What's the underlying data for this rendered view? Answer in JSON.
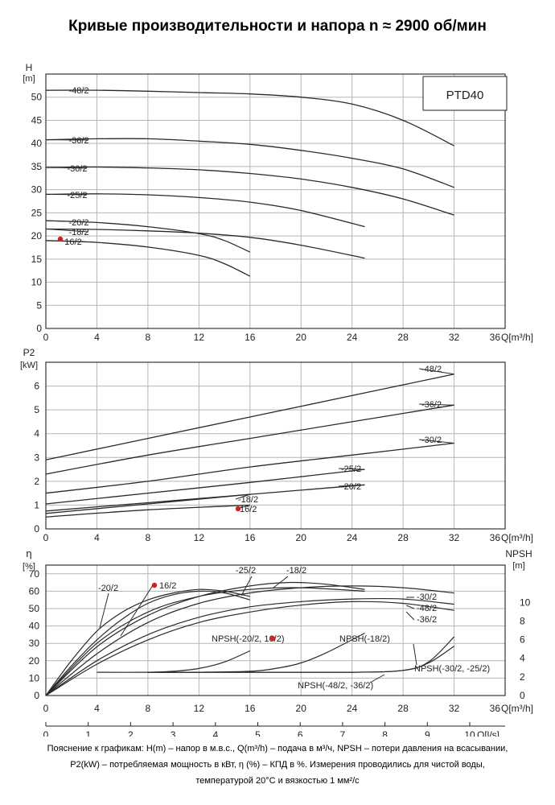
{
  "page": {
    "title": "Кривые производительности и напора n ≈ 2900 об/мин",
    "footnote": [
      "Пояснение к графикам: H(m) – напор в м.в.с., Q(m³/h) – подача в м³/ч, NPSH – потери давления на всасывании,",
      "P2(kW) – потребляемая мощность в кВт, η (%) – КПД в %. Измерения проводились для чистой воды,",
      "температурой 20°C и вязкостью 1 мм²/с"
    ]
  },
  "chart_data": [
    {
      "type": "line",
      "model_label": "PTD40",
      "ylabel_top": "H",
      "ylabel_unit": "[m]",
      "xlabel": "Q[m³/h]",
      "xlim": [
        0,
        36
      ],
      "ylim": [
        0,
        55
      ],
      "xticks": [
        0,
        4,
        8,
        12,
        16,
        20,
        24,
        28,
        32,
        36
      ],
      "yticks": [
        0,
        5,
        10,
        15,
        20,
        25,
        30,
        35,
        40,
        45,
        50
      ],
      "grid": true,
      "series": [
        {
          "name": "-48/2",
          "x": [
            0,
            4,
            8,
            12,
            16,
            20,
            24,
            28,
            32
          ],
          "y": [
            51.5,
            51.5,
            51.3,
            51.0,
            50.7,
            50.0,
            48.5,
            45.0,
            39.5
          ]
        },
        {
          "name": "-36/2",
          "x": [
            0,
            4,
            8,
            12,
            16,
            20,
            24,
            28,
            32
          ],
          "y": [
            40.8,
            41.0,
            41.0,
            40.5,
            39.8,
            38.5,
            36.8,
            34.5,
            30.5
          ]
        },
        {
          "name": "-30/2",
          "x": [
            0,
            4,
            8,
            12,
            16,
            20,
            24,
            28,
            32
          ],
          "y": [
            34.8,
            34.9,
            34.7,
            34.3,
            33.5,
            32.3,
            30.5,
            28.0,
            24.5
          ]
        },
        {
          "name": "-25/2",
          "x": [
            0,
            4,
            8,
            12,
            16,
            20,
            25
          ],
          "y": [
            29.0,
            29.1,
            28.9,
            28.3,
            27.3,
            25.5,
            22.0
          ]
        },
        {
          "name": "-20/2",
          "x": [
            0,
            4,
            8,
            12,
            14,
            16
          ],
          "y": [
            23.3,
            22.9,
            22.0,
            20.5,
            19.0,
            16.5
          ]
        },
        {
          "name": "-18/2",
          "x": [
            0,
            4,
            8,
            12,
            16,
            20,
            25
          ],
          "y": [
            21.5,
            21.4,
            21.1,
            20.6,
            19.7,
            18.0,
            15.2
          ]
        },
        {
          "name": "16/2",
          "x": [
            0,
            4,
            8,
            12,
            14,
            16
          ],
          "y": [
            19.0,
            18.6,
            17.6,
            15.8,
            14.0,
            11.3
          ]
        }
      ]
    },
    {
      "type": "line",
      "ylabel_top": "P2",
      "ylabel_unit": "[kW]",
      "xlabel": "Q[m³/h]",
      "xlim": [
        0,
        36
      ],
      "ylim": [
        0,
        7
      ],
      "xticks": [
        0,
        4,
        8,
        12,
        16,
        20,
        24,
        28,
        32,
        36
      ],
      "yticks": [
        0,
        1,
        2,
        3,
        4,
        5,
        6
      ],
      "grid": true,
      "series": [
        {
          "name": "-48/2",
          "x": [
            0,
            8,
            16,
            24,
            32
          ],
          "y": [
            2.9,
            3.8,
            4.7,
            5.6,
            6.5
          ]
        },
        {
          "name": "-36/2",
          "x": [
            0,
            8,
            16,
            24,
            32
          ],
          "y": [
            2.3,
            3.1,
            3.8,
            4.5,
            5.2
          ]
        },
        {
          "name": "-30/2",
          "x": [
            0,
            8,
            16,
            24,
            32
          ],
          "y": [
            1.5,
            2.0,
            2.6,
            3.1,
            3.6
          ]
        },
        {
          "name": "-25/2",
          "x": [
            0,
            8,
            16,
            25
          ],
          "y": [
            1.05,
            1.5,
            1.95,
            2.5
          ]
        },
        {
          "name": "-20/2",
          "x": [
            0,
            8,
            16,
            25
          ],
          "y": [
            0.75,
            1.1,
            1.45,
            1.85
          ]
        },
        {
          "name": "-18/2",
          "x": [
            0,
            8,
            16
          ],
          "y": [
            0.65,
            1.05,
            1.45
          ]
        },
        {
          "name": "16/2",
          "x": [
            0,
            8,
            16
          ],
          "y": [
            0.5,
            0.8,
            1.0
          ]
        }
      ]
    },
    {
      "type": "line",
      "ylabel_left_top": "η",
      "ylabel_left_unit": "[%]",
      "ylabel_right_top": "NPSH",
      "ylabel_right_unit": "[m]",
      "xlabel": "Q[m³/h]",
      "xlabel_secondary": "Q[l/s]",
      "xlim": [
        0,
        36
      ],
      "ylim": [
        0,
        75
      ],
      "ylim_right": [
        0,
        14
      ],
      "xticks": [
        0,
        4,
        8,
        12,
        16,
        20,
        24,
        28,
        32,
        36
      ],
      "yticks": [
        0,
        10,
        20,
        30,
        40,
        50,
        60,
        70
      ],
      "yticks_right": [
        0,
        2,
        4,
        6,
        8,
        10
      ],
      "xticks_secondary": [
        0,
        1,
        2,
        3,
        4,
        5,
        6,
        7,
        8,
        9,
        10
      ],
      "grid": true,
      "efficiency_series": [
        {
          "name": "-20/2",
          "x": [
            0,
            2,
            4,
            6,
            8,
            10,
            12,
            14,
            16
          ],
          "y": [
            0,
            20,
            37,
            48,
            55,
            59,
            61,
            60,
            57
          ]
        },
        {
          "name": "16/2",
          "x": [
            0,
            2,
            4,
            6,
            8,
            10,
            12,
            14,
            16
          ],
          "y": [
            0,
            17,
            32,
            44,
            53,
            58,
            60,
            59,
            55
          ]
        },
        {
          "name": "-25/2",
          "x": [
            0,
            4,
            8,
            12,
            16,
            20,
            25
          ],
          "y": [
            0,
            30,
            48,
            57,
            61,
            62,
            60
          ]
        },
        {
          "name": "-18/2",
          "x": [
            0,
            4,
            8,
            12,
            16,
            19,
            22,
            25
          ],
          "y": [
            0,
            28,
            46,
            57,
            63,
            65,
            64,
            61
          ]
        },
        {
          "name": "-30/2",
          "x": [
            0,
            4,
            8,
            12,
            16,
            20,
            24,
            28,
            32
          ],
          "y": [
            0,
            24,
            42,
            53,
            59,
            62,
            63,
            62,
            59
          ]
        },
        {
          "name": "-48/2",
          "x": [
            0,
            4,
            8,
            12,
            16,
            20,
            24,
            28,
            32
          ],
          "y": [
            0,
            20,
            35,
            45,
            51,
            54,
            55.5,
            55.5,
            52.5
          ]
        },
        {
          "name": "-36/2",
          "x": [
            0,
            4,
            8,
            12,
            16,
            20,
            24,
            28,
            32
          ],
          "y": [
            0,
            18,
            32,
            42,
            48,
            52,
            54,
            53,
            49
          ]
        }
      ],
      "npsh_series": [
        {
          "name": "NPSH(-20/2, 16/2)",
          "x": [
            4,
            8,
            10,
            12,
            14,
            16
          ],
          "y": [
            2.5,
            2.5,
            2.6,
            2.9,
            3.6,
            4.8
          ]
        },
        {
          "name": "NPSH(-18/2)",
          "x": [
            8,
            12,
            16,
            18,
            20,
            22,
            25
          ],
          "y": [
            2.5,
            2.5,
            2.6,
            2.9,
            3.5,
            4.6,
            6.7
          ]
        },
        {
          "name": "NPSH(-48/2, -36/2)",
          "x": [
            8,
            16,
            24,
            28,
            30,
            32
          ],
          "y": [
            2.5,
            2.5,
            2.5,
            2.7,
            3.6,
            6.3
          ]
        },
        {
          "name": "NPSH(-30/2, -25/2)",
          "x": [
            8,
            16,
            24,
            28,
            30,
            32
          ],
          "y": [
            2.5,
            2.5,
            2.5,
            2.7,
            3.5,
            5.3
          ]
        }
      ]
    }
  ]
}
